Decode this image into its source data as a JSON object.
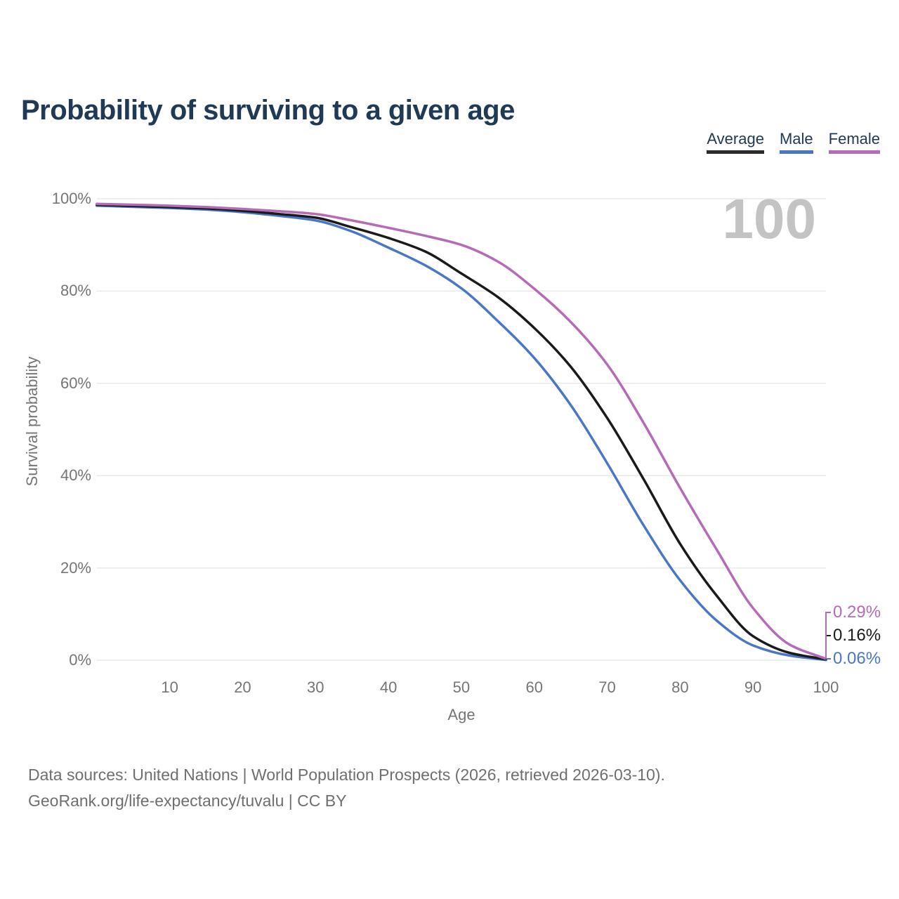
{
  "title": "Probability of surviving to a given age",
  "watermark": "100",
  "legend": [
    {
      "label": "Average",
      "color": "#2b2b2b"
    },
    {
      "label": "Male",
      "color": "#4a77c4"
    },
    {
      "label": "Female",
      "color": "#b56bb7"
    }
  ],
  "chart_data": {
    "type": "line",
    "title": "Probability of surviving to a given age",
    "xlabel": "Age",
    "ylabel": "Survival probability",
    "xlim": [
      0,
      100
    ],
    "ylim": [
      0,
      100
    ],
    "grid": "horizontal-only",
    "legend_position": "top-right",
    "x_ticks": [
      10,
      20,
      30,
      40,
      50,
      60,
      70,
      80,
      90,
      100
    ],
    "y_ticks": [
      0,
      20,
      40,
      60,
      80,
      100
    ],
    "y_tick_suffix": "%",
    "x": [
      0,
      5,
      10,
      15,
      20,
      25,
      30,
      35,
      40,
      45,
      50,
      55,
      60,
      65,
      70,
      75,
      80,
      85,
      90,
      95,
      100
    ],
    "series": [
      {
        "name": "Male",
        "color": "#4a77c4",
        "end_label": "0.06%",
        "values": [
          98.5,
          98.25,
          98.0,
          97.65,
          97.1,
          96.3,
          95.3,
          92.9,
          89.4,
          85.6,
          80.6,
          73.5,
          65.5,
          55.3,
          42.7,
          29.2,
          17.3,
          8.6,
          3.2,
          1.0,
          0.06
        ]
      },
      {
        "name": "Average",
        "color": "#1a1a1a",
        "end_label": "0.16%",
        "values": [
          98.7,
          98.45,
          98.2,
          97.9,
          97.4,
          96.7,
          95.9,
          93.8,
          91.5,
          88.6,
          83.8,
          78.7,
          72.0,
          63.6,
          52.5,
          39.2,
          25.2,
          14.0,
          5.2,
          1.6,
          0.16
        ]
      },
      {
        "name": "Female",
        "color": "#b56bb7",
        "end_label": "0.29%",
        "values": [
          98.9,
          98.7,
          98.5,
          98.2,
          97.8,
          97.3,
          96.7,
          95.3,
          93.7,
          92.0,
          90.0,
          86.4,
          80.5,
          73.3,
          64.1,
          51.4,
          37.3,
          24.0,
          11.3,
          3.4,
          0.29
        ]
      }
    ]
  },
  "footer": {
    "line1": "Data sources: United Nations | World Population Prospects (2026, retrieved 2026-03-10).",
    "line2": "GeoRank.org/life-expectancy/tuvalu | CC BY"
  }
}
